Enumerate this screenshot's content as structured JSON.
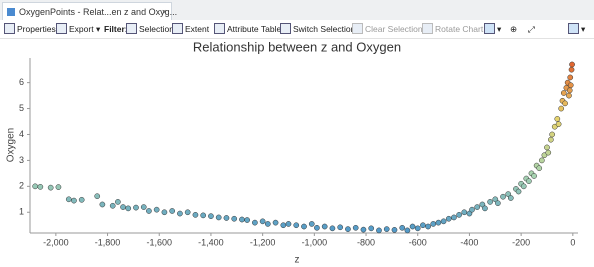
{
  "tab": {
    "title": "OxygenPoints - Relat...en z and Oxyg..."
  },
  "toolbar": {
    "properties": "Properties",
    "export": "Export",
    "filter": "Filter:",
    "selection": "Selection",
    "extent": "Extent",
    "attribute_table": "Attribute Table",
    "switch_selection": "Switch Selection",
    "clear_selection": "Clear Selection",
    "rotate_chart": "Rotate Chart"
  },
  "chart_data": {
    "type": "scatter",
    "title": "Relationship between z and Oxygen",
    "x_label": "z",
    "y_label": "Oxygen",
    "xlim": [
      -2100,
      20
    ],
    "ylim": [
      0.2,
      6.95
    ],
    "xticks": [
      {
        "value": -2000,
        "label": "-2,000"
      },
      {
        "value": -1800,
        "label": "-1,800"
      },
      {
        "value": -1600,
        "label": "-1,600"
      },
      {
        "value": -1400,
        "label": "-1,400"
      },
      {
        "value": -1200,
        "label": "-1,200"
      },
      {
        "value": -1000,
        "label": "-1,000"
      },
      -800,
      -600,
      -400,
      -200,
      0
    ],
    "yticks": [
      1,
      2,
      3,
      4,
      5,
      6
    ],
    "grid": false,
    "color_stops": [
      "#4f97c9",
      "#a9d4b0",
      "#e8d36a",
      "#e05a2a"
    ],
    "x": [
      -2080,
      -2060,
      -2020,
      -1990,
      -1950,
      -1930,
      -1900,
      -1840,
      -1820,
      -1780,
      -1760,
      -1740,
      -1720,
      -1690,
      -1660,
      -1640,
      -1610,
      -1580,
      -1550,
      -1520,
      -1490,
      -1460,
      -1430,
      -1400,
      -1370,
      -1340,
      -1310,
      -1280,
      -1260,
      -1230,
      -1200,
      -1180,
      -1150,
      -1120,
      -1100,
      -1070,
      -1040,
      -1010,
      -990,
      -960,
      -930,
      -900,
      -870,
      -840,
      -810,
      -780,
      -750,
      -720,
      -690,
      -660,
      -640,
      -620,
      -600,
      -580,
      -560,
      -540,
      -520,
      -500,
      -480,
      -460,
      -440,
      -420,
      -400,
      -390,
      -370,
      -350,
      -340,
      -320,
      -300,
      -290,
      -270,
      -250,
      -240,
      -220,
      -210,
      -200,
      -190,
      -180,
      -170,
      -160,
      -150,
      -140,
      -130,
      -120,
      -110,
      -100,
      -95,
      -85,
      -80,
      -70,
      -60,
      -55,
      -45,
      -40,
      -35,
      -30,
      -25,
      -20,
      -15,
      -12,
      -10,
      -8,
      -5,
      -3
    ],
    "y": [
      2.0,
      1.98,
      1.95,
      1.97,
      1.5,
      1.45,
      1.48,
      1.62,
      1.3,
      1.25,
      1.4,
      1.2,
      1.15,
      1.18,
      1.2,
      1.05,
      1.1,
      1.0,
      1.05,
      0.95,
      1.0,
      0.9,
      0.88,
      0.85,
      0.8,
      0.78,
      0.75,
      0.72,
      0.7,
      0.6,
      0.65,
      0.55,
      0.6,
      0.5,
      0.55,
      0.5,
      0.45,
      0.55,
      0.4,
      0.45,
      0.38,
      0.42,
      0.35,
      0.4,
      0.33,
      0.38,
      0.3,
      0.35,
      0.32,
      0.4,
      0.3,
      0.45,
      0.38,
      0.5,
      0.45,
      0.55,
      0.6,
      0.65,
      0.75,
      0.8,
      0.9,
      1.0,
      0.95,
      1.1,
      1.2,
      1.3,
      1.15,
      1.4,
      1.5,
      1.35,
      1.6,
      1.7,
      1.55,
      1.9,
      1.8,
      2.1,
      2.0,
      2.3,
      2.2,
      2.5,
      2.4,
      2.8,
      2.7,
      3.0,
      3.2,
      3.5,
      3.3,
      3.8,
      4.0,
      4.3,
      4.6,
      4.4,
      5.0,
      5.3,
      5.6,
      5.2,
      5.8,
      6.0,
      5.5,
      5.7,
      6.2,
      5.9,
      6.5,
      6.7
    ]
  }
}
